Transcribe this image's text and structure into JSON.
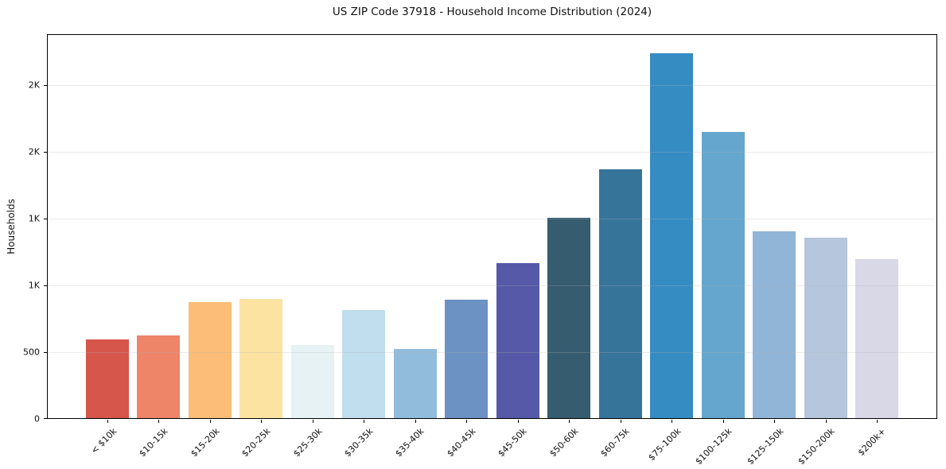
{
  "chart_data": {
    "type": "bar",
    "title": "US ZIP Code 37918 - Household Income Distribution (2024)",
    "xlabel": "",
    "ylabel": "Households",
    "categories": [
      "< $10k",
      "$10-15k",
      "$15-20k",
      "$20-25k",
      "$25-30k",
      "$30-35k",
      "$35-40k",
      "$40-45k",
      "$45-50k",
      "$50-60k",
      "$60-75k",
      "$75-100k",
      "$100-125k",
      "$125-150k",
      "$150-200k",
      "$200k+"
    ],
    "values": [
      590,
      620,
      870,
      890,
      550,
      810,
      520,
      885,
      1160,
      1500,
      1860,
      2730,
      2140,
      1400,
      1350,
      1190
    ],
    "bar_colors": [
      "#d6564c",
      "#ee8468",
      "#fbbd77",
      "#fde3a2",
      "#e6f2f3",
      "#c0deed",
      "#92bcdb",
      "#6c91c3",
      "#5659a7",
      "#365c70",
      "#36749a",
      "#358cc3",
      "#64a6cd",
      "#90b5d7",
      "#b5c6dd",
      "#d8d8e7"
    ],
    "ylim": [
      0,
      2880
    ],
    "yticks": [
      {
        "value": 0,
        "label": "0"
      },
      {
        "value": 500,
        "label": "500"
      },
      {
        "value": 1000,
        "label": "1K"
      },
      {
        "value": 1500,
        "label": "1K"
      },
      {
        "value": 2000,
        "label": "2K"
      },
      {
        "value": 2500,
        "label": "2K"
      }
    ],
    "grid": "horizontal",
    "legend_position": "none",
    "background_color": "#ffffff",
    "frame_color": "#000000",
    "text_color": "#111111",
    "gridline_color": "#eaeaea"
  }
}
